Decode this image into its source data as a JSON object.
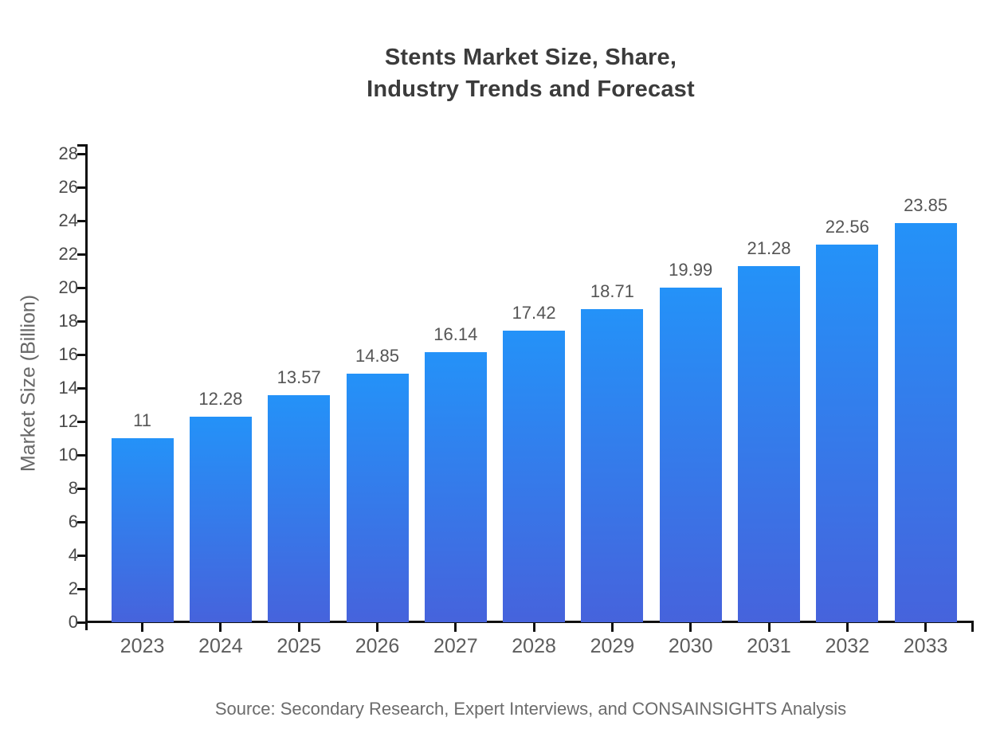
{
  "page": {
    "background_color": "#ffffff"
  },
  "chart_data": {
    "type": "bar",
    "title": "Stents Market Size, Share,\nIndustry Trends and Forecast",
    "xlabel": "",
    "ylabel": "Market Size (Billion)",
    "categories": [
      "2023",
      "2024",
      "2025",
      "2026",
      "2027",
      "2028",
      "2029",
      "2030",
      "2031",
      "2032",
      "2033"
    ],
    "values": [
      11,
      12.28,
      13.57,
      14.85,
      16.14,
      17.42,
      18.71,
      19.99,
      21.28,
      22.56,
      23.85
    ],
    "value_labels": [
      "11",
      "12.28",
      "13.57",
      "14.85",
      "16.14",
      "17.42",
      "18.71",
      "19.99",
      "21.28",
      "22.56",
      "23.85"
    ],
    "ylim": [
      0,
      28
    ],
    "yticks": [
      0,
      2,
      4,
      6,
      8,
      10,
      12,
      14,
      16,
      18,
      20,
      22,
      24,
      26,
      28
    ],
    "grid": false,
    "legend": false,
    "bar_gradient_top": "#2492f8",
    "bar_gradient_bottom": "#4663dc",
    "axis_color": "#111111",
    "tick_label_color": "#4a4a4a",
    "value_label_color": "#555555"
  },
  "footer": {
    "source": "Source: Secondary Research, Expert Interviews, and CONSAINSIGHTS Analysis"
  }
}
